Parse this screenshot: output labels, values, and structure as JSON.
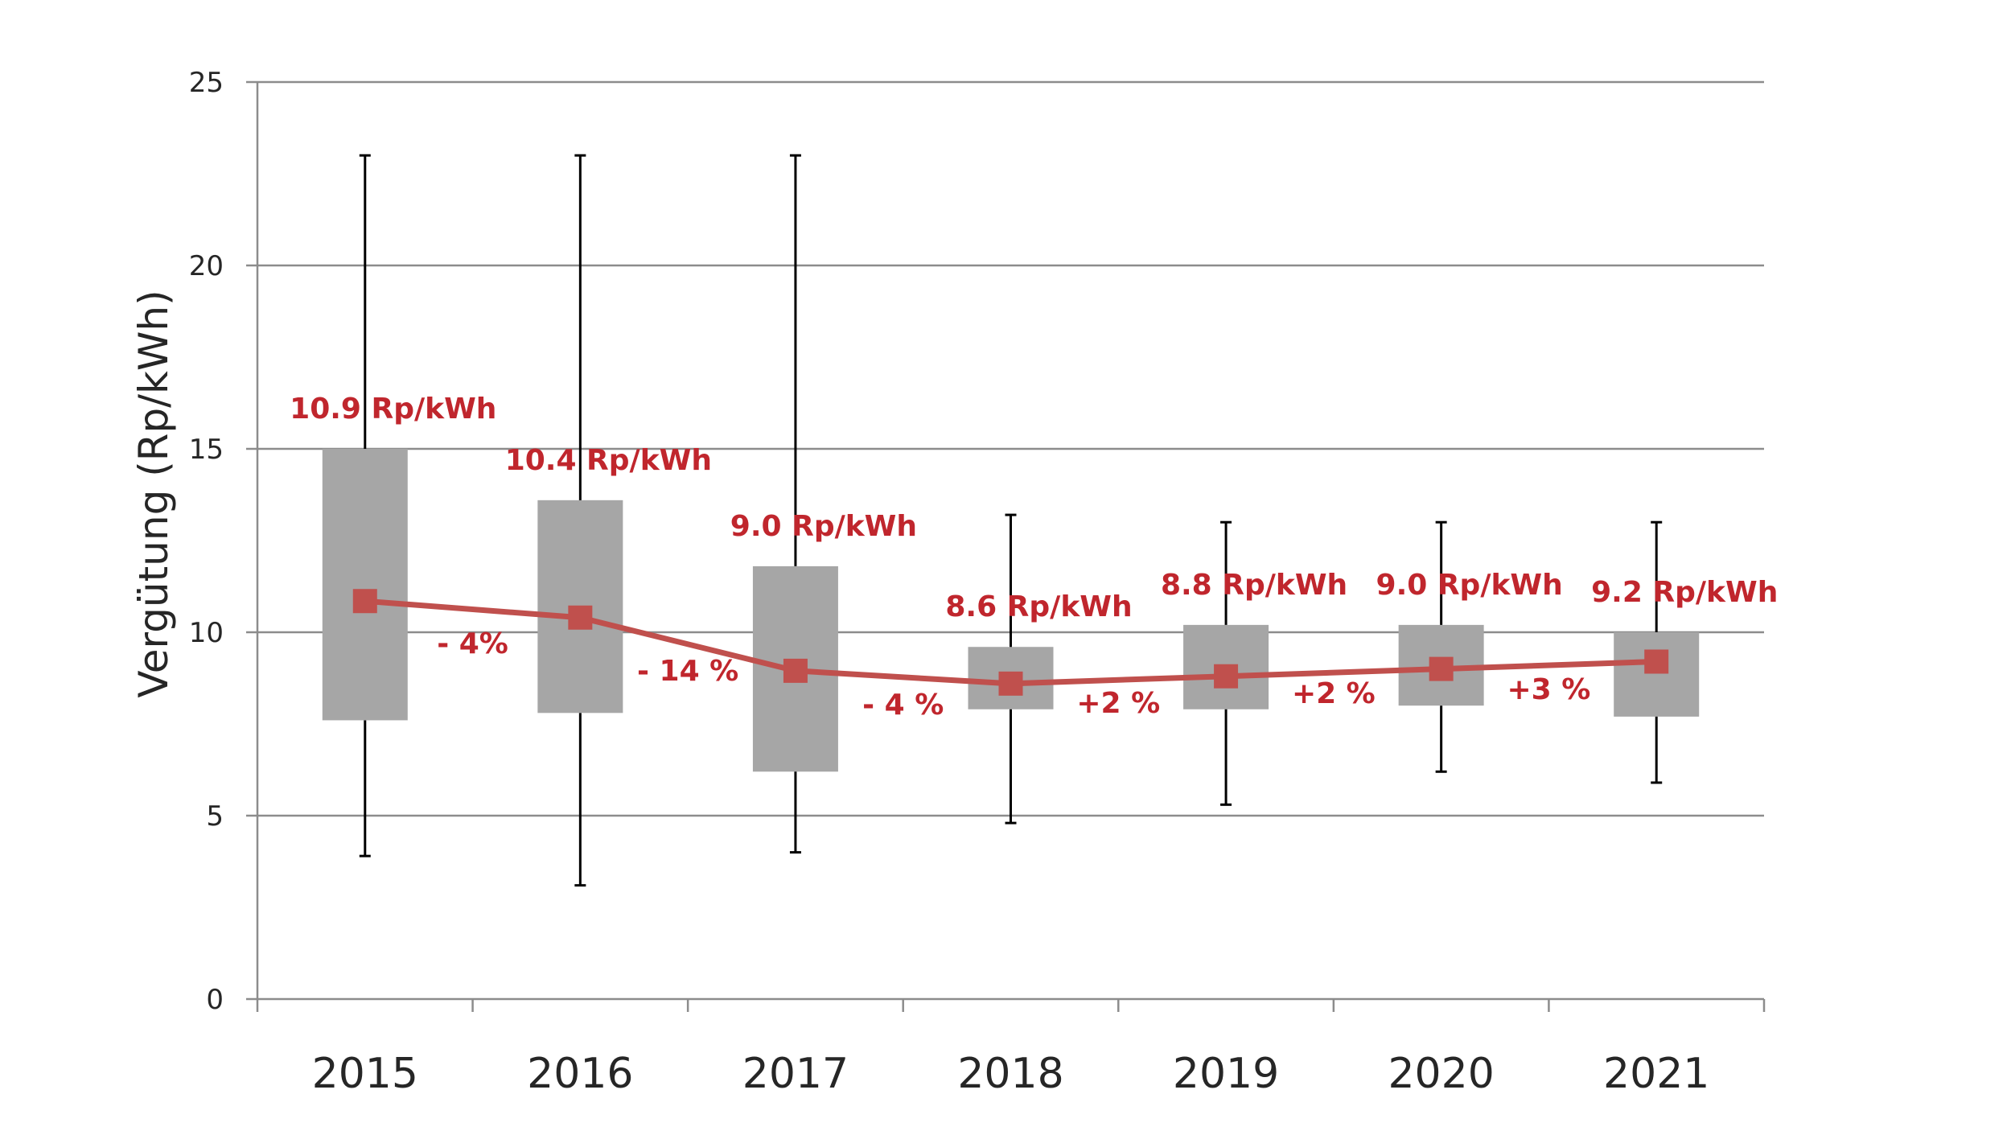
{
  "chart_data": {
    "type": "box",
    "ylabel": "Vergütung (Rp/kWh)",
    "ylim": [
      0,
      25
    ],
    "yticks": [
      "0",
      "5",
      "10",
      "15",
      "20",
      "25"
    ],
    "categories": [
      "2015",
      "2016",
      "2017",
      "2018",
      "2019",
      "2020",
      "2021"
    ],
    "boxes": [
      {
        "year": "2015",
        "whisker_low": 3.9,
        "q1": 7.6,
        "q3": 15.0,
        "whisker_high": 23.0
      },
      {
        "year": "2016",
        "whisker_low": 3.1,
        "q1": 7.8,
        "q3": 13.6,
        "whisker_high": 23.0
      },
      {
        "year": "2017",
        "whisker_low": 4.0,
        "q1": 6.2,
        "q3": 11.8,
        "whisker_high": 23.0
      },
      {
        "year": "2018",
        "whisker_low": 4.8,
        "q1": 7.9,
        "q3": 9.6,
        "whisker_high": 13.2
      },
      {
        "year": "2019",
        "whisker_low": 5.3,
        "q1": 7.9,
        "q3": 10.2,
        "whisker_high": 13.0
      },
      {
        "year": "2020",
        "whisker_low": 6.2,
        "q1": 8.0,
        "q3": 10.2,
        "whisker_high": 13.0
      },
      {
        "year": "2021",
        "whisker_low": 5.9,
        "q1": 7.7,
        "q3": 10.0,
        "whisker_high": 13.0
      }
    ],
    "series": [
      {
        "values": [
          10.85,
          10.4,
          8.95,
          8.6,
          8.8,
          9.0,
          9.2
        ]
      }
    ],
    "value_labels": [
      "10.9 Rp/kWh",
      "10.4 Rp/kWh",
      "9.0 Rp/kWh",
      "8.6 Rp/kWh",
      "8.8 Rp/kWh",
      "9.0 Rp/kWh",
      "9.2 Rp/kWh"
    ],
    "change_labels": [
      "- 4%",
      "- 14 %",
      "- 4 %",
      "+2 %",
      "+2 %",
      "+3 %"
    ],
    "grid": true,
    "colors": {
      "box": "#a6a6a6",
      "line": "#c0504d",
      "label": "#c0262d",
      "grid": "#8c8c8c",
      "whisker": "#000000"
    }
  }
}
